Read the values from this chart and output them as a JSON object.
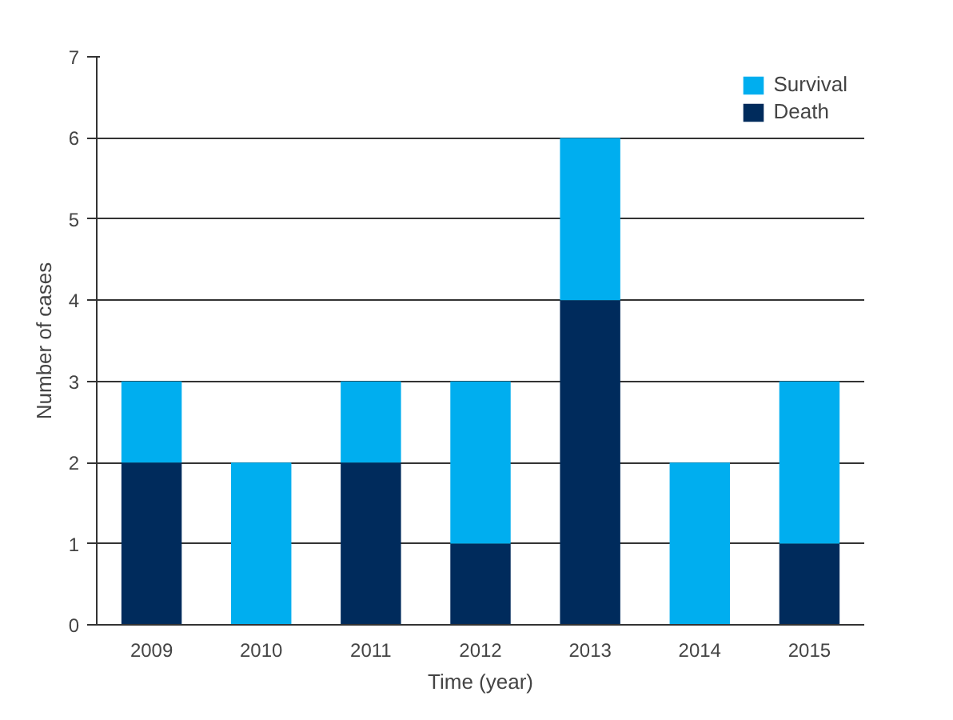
{
  "chart_data": {
    "type": "bar",
    "stacked": true,
    "xlabel": "Time (year)",
    "ylabel": "Number of cases",
    "categories": [
      "2009",
      "2010",
      "2011",
      "2012",
      "2013",
      "2014",
      "2015"
    ],
    "series": [
      {
        "name": "Death",
        "color": "#002b5c",
        "values": [
          2,
          0,
          2,
          1,
          4,
          0,
          1
        ]
      },
      {
        "name": "Survival",
        "color": "#00aeef",
        "values": [
          1,
          2,
          1,
          2,
          2,
          2,
          2
        ]
      }
    ],
    "ylim": [
      0,
      7
    ],
    "yticks": [
      0,
      1,
      2,
      3,
      4,
      5,
      6,
      7
    ],
    "grid": "y",
    "legend": "top right"
  }
}
